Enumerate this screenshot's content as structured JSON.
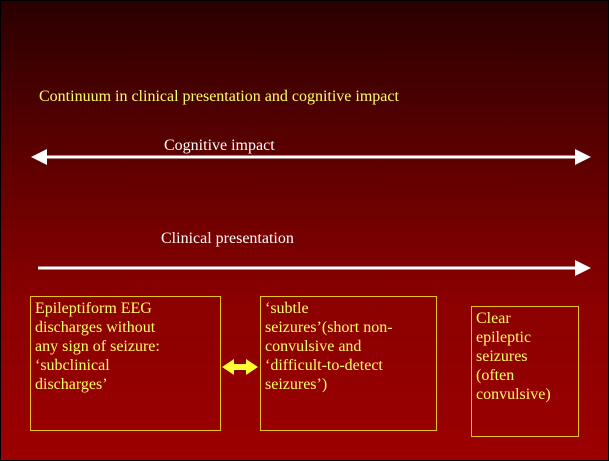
{
  "title": "Continuum in clinical  presentation and cognitive impact",
  "arrows": {
    "top": "Cognitive impact",
    "bottom": "Clinical presentation"
  },
  "boxes": [
    {
      "lines": [
        "Epileptiform EEG",
        "discharges without",
        "any sign of seizure:",
        "‘subclinical",
        "discharges’"
      ]
    },
    {
      "lines": [
        "‘subtle",
        "seizures’(short non-",
        "convulsive and",
        "‘difficult-to-detect",
        "seizures’)"
      ]
    },
    {
      "lines": [
        "Clear",
        "epileptic",
        "seizures",
        "(often",
        "convulsive)"
      ]
    }
  ]
}
